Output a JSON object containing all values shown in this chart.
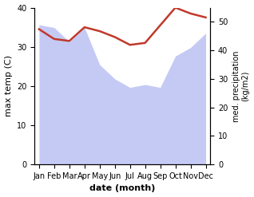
{
  "months": [
    "Jan",
    "Feb",
    "Mar",
    "Apr",
    "May",
    "Jun",
    "Jul",
    "Aug",
    "Sep",
    "Oct",
    "Nov",
    "Dec"
  ],
  "month_indices": [
    0,
    1,
    2,
    3,
    4,
    5,
    6,
    7,
    8,
    9,
    10,
    11
  ],
  "max_temp": [
    34.5,
    32.0,
    31.5,
    35.0,
    34.0,
    32.5,
    30.5,
    31.0,
    35.5,
    40.0,
    38.5,
    37.5
  ],
  "precipitation": [
    49,
    48,
    43,
    48,
    35,
    30,
    27,
    28,
    27,
    38,
    41,
    46
  ],
  "temp_color": "#c0392b",
  "precip_fill_color": "#c5caf5",
  "temp_ylim": [
    0,
    40
  ],
  "precip_ylim": [
    0,
    55
  ],
  "temp_yticks": [
    0,
    10,
    20,
    30,
    40
  ],
  "precip_yticks": [
    0,
    10,
    20,
    30,
    40,
    50
  ],
  "xlabel": "date (month)",
  "ylabel_left": "max temp (C)",
  "ylabel_right": "med. precipitation\n(kg/m2)",
  "fig_width": 3.18,
  "fig_height": 2.47,
  "dpi": 100
}
